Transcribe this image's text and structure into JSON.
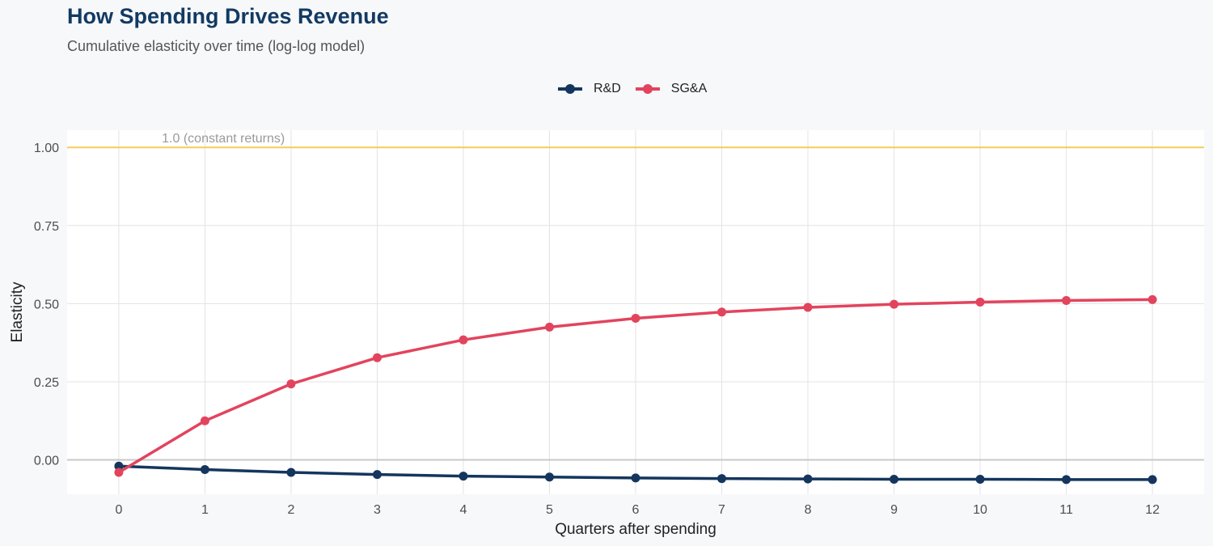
{
  "title": "How Spending Drives Revenue",
  "subtitle": "Cumulative elasticity over time (log-log model)",
  "colors": {
    "rd": "#14365e",
    "sga": "#e2445e",
    "reference": "#f2cd58",
    "zero_line": "#c8c8c8",
    "grid": "#e3e3e3",
    "panel": "#ffffff",
    "background": "#f7f8fa"
  },
  "chart_data": {
    "type": "line",
    "title": "How Spending Drives Revenue",
    "subtitle": "Cumulative elasticity over time (log-log model)",
    "xlabel": "Quarters after spending",
    "ylabel": "Elasticity",
    "x": [
      0,
      1,
      2,
      3,
      4,
      5,
      6,
      7,
      8,
      9,
      10,
      11,
      12
    ],
    "x_tick_labels": [
      "0",
      "1",
      "2",
      "3",
      "4",
      "5",
      "6",
      "7",
      "8",
      "9",
      "10",
      "11",
      "12"
    ],
    "y_tick_values": [
      0.0,
      0.25,
      0.5,
      0.75,
      1.0
    ],
    "y_tick_labels": [
      "0.00",
      "0.25",
      "0.50",
      "0.75",
      "1.00"
    ],
    "xlim": [
      -0.6,
      12.6
    ],
    "ylim": [
      -0.11,
      1.055
    ],
    "grid": true,
    "legend": "top-center",
    "reference_line": {
      "y": 1.0,
      "label": "1.0 (constant returns)"
    },
    "series": [
      {
        "name": "R&D",
        "values": [
          -0.02,
          -0.031,
          -0.04,
          -0.047,
          -0.052,
          -0.055,
          -0.058,
          -0.06,
          -0.061,
          -0.062,
          -0.062,
          -0.063,
          -0.063
        ]
      },
      {
        "name": "SG&A",
        "values": [
          -0.04,
          0.125,
          0.243,
          0.327,
          0.384,
          0.425,
          0.453,
          0.473,
          0.488,
          0.498,
          0.505,
          0.51,
          0.513
        ]
      }
    ]
  }
}
